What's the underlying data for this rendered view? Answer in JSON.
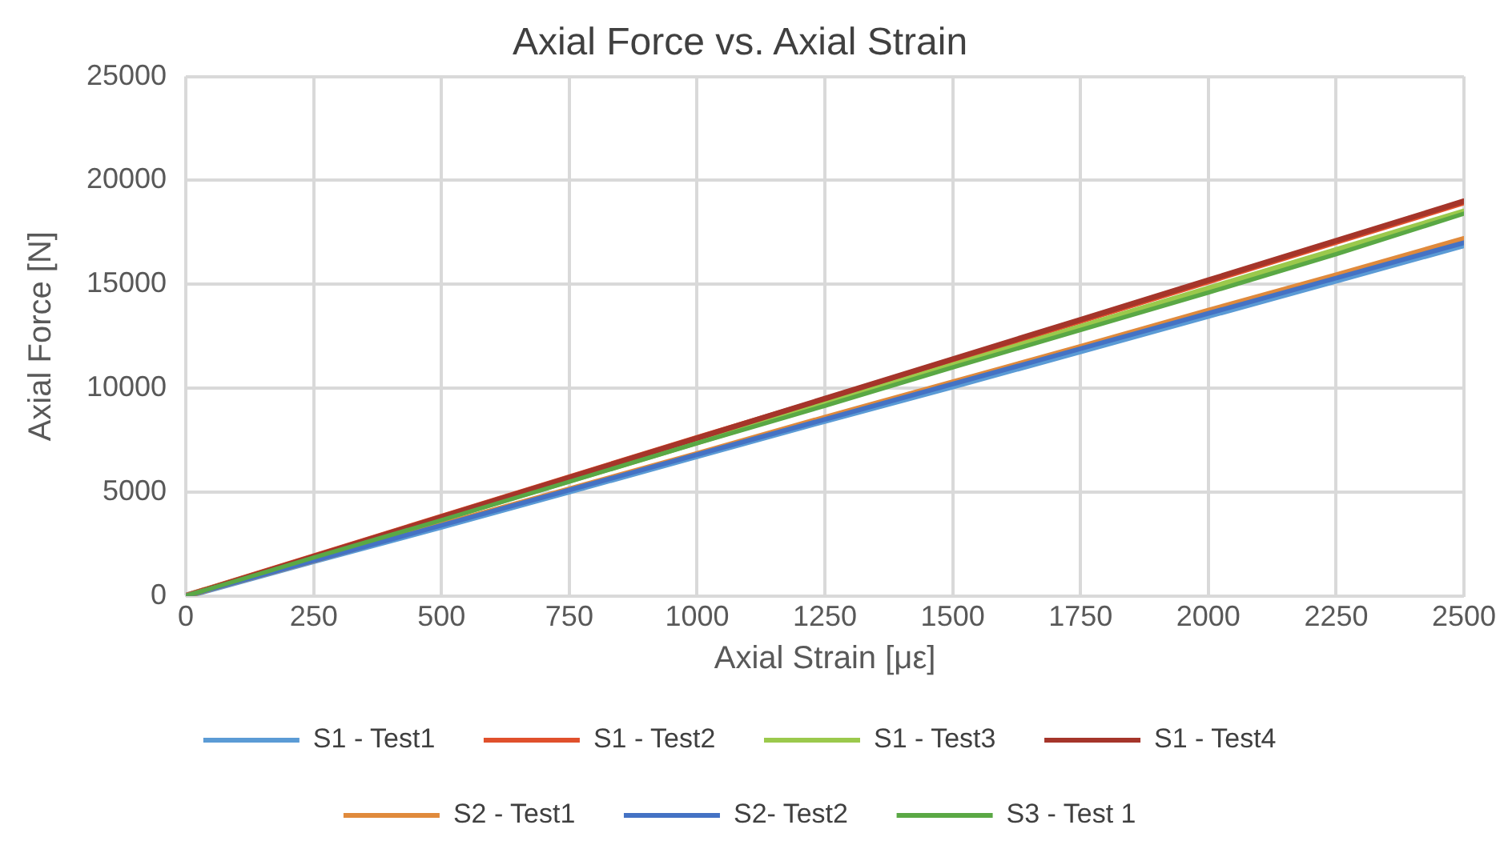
{
  "chart_data": {
    "type": "line",
    "title": "Axial Force vs. Axial Strain",
    "xlabel": "Axial Strain [με]",
    "ylabel": "Axial Force [N]",
    "x": [
      0,
      250,
      500,
      750,
      1000,
      1250,
      1500,
      1750,
      2000,
      2250,
      2500
    ],
    "xlim": [
      0,
      2500
    ],
    "xticks": [
      0,
      250,
      500,
      750,
      1000,
      1250,
      1500,
      1750,
      2000,
      2250,
      2500
    ],
    "ylim": [
      0,
      25000
    ],
    "yticks": [
      0,
      5000,
      10000,
      15000,
      20000,
      25000
    ],
    "grid": true,
    "legend": "bottom",
    "marker": "none",
    "line_style": "solid",
    "series": [
      {
        "name": "S1 - Test1",
        "color": "#5b9bd5",
        "values": [
          0,
          1700,
          3350,
          5050,
          6750,
          8450,
          10100,
          11800,
          13500,
          15200,
          16900
        ]
      },
      {
        "name": "S1 - Test2",
        "color": "#e0502c",
        "values": [
          0,
          1900,
          3800,
          5700,
          7600,
          9450,
          11350,
          13250,
          15150,
          17050,
          18950
        ]
      },
      {
        "name": "S1 - Test3",
        "color": "#9bc94c",
        "values": [
          0,
          1850,
          3700,
          5550,
          7400,
          9250,
          11100,
          12950,
          14800,
          16650,
          18500
        ]
      },
      {
        "name": "S1 - Test4",
        "color": "#a5352a",
        "values": [
          0,
          1900,
          3800,
          5700,
          7600,
          9500,
          11400,
          13300,
          15200,
          17100,
          19000
        ]
      },
      {
        "name": "S2 - Test1",
        "color": "#e08a3c",
        "values": [
          0,
          1700,
          3450,
          5150,
          6850,
          8600,
          10300,
          12000,
          13750,
          15450,
          17200
        ]
      },
      {
        "name": "S2- Test2",
        "color": "#4472c4",
        "values": [
          0,
          1700,
          3400,
          5100,
          6800,
          8500,
          10200,
          11900,
          13600,
          15300,
          17000
        ]
      },
      {
        "name": "S3 - Test 1",
        "color": "#5aa845",
        "values": [
          0,
          1850,
          3650,
          5500,
          7350,
          9150,
          11000,
          12800,
          14600,
          16450,
          18400
        ]
      }
    ]
  }
}
